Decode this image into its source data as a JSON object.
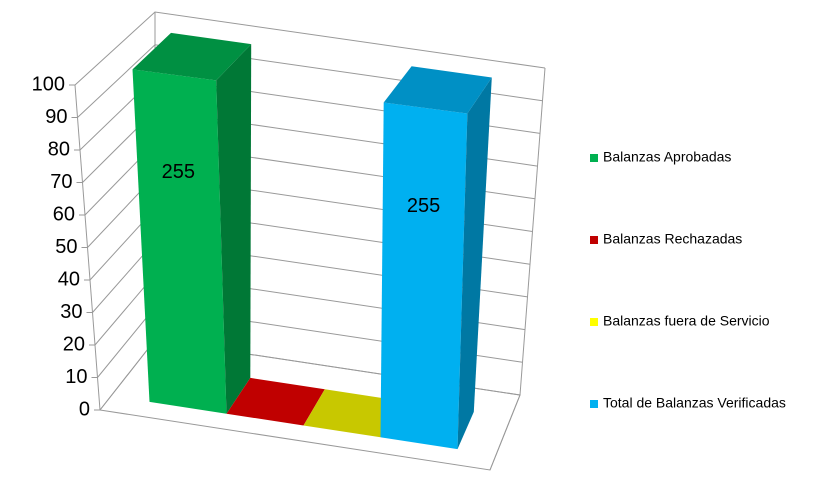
{
  "chart_data": {
    "type": "bar3d",
    "series": [
      {
        "name": "Balanzas Aprobadas",
        "color": "#00b050",
        "values": [
          255
        ]
      },
      {
        "name": "Balanzas Rechazadas",
        "color": "#c00000",
        "values": [
          0
        ]
      },
      {
        "name": "Balanzas fuera de Servicio",
        "color": "#c8c800",
        "values": [
          0
        ]
      },
      {
        "name": "Total de Balanzas Verificadas",
        "color": "#00b0f0",
        "values": [
          255
        ]
      }
    ],
    "ylim": [
      0,
      100
    ],
    "yticks": [
      0,
      10,
      20,
      30,
      40,
      50,
      60,
      70,
      80,
      90,
      100
    ],
    "grid": true,
    "legend": "right"
  }
}
